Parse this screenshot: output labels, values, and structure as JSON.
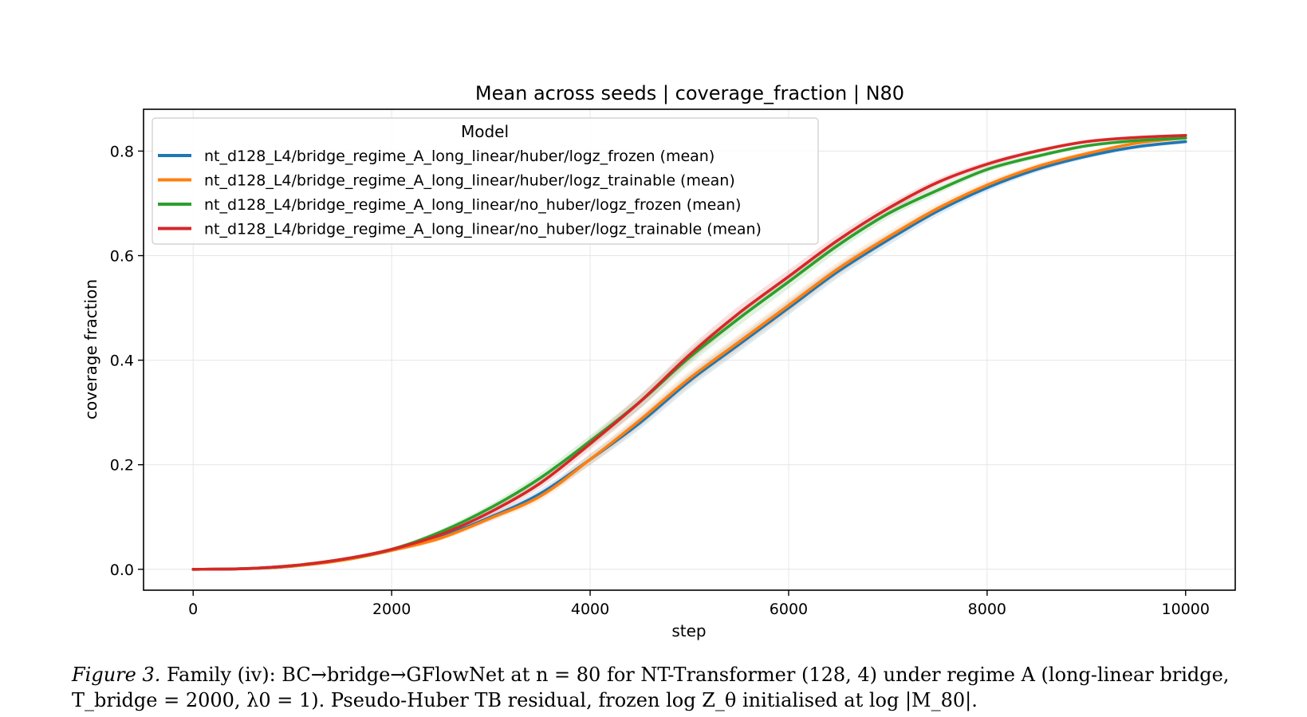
{
  "figure_label": "Figure 3.",
  "caption_text": "Family (iv): BC→bridge→GFlowNet at n = 80 for NT-Transformer (128, 4) under regime A (long-linear bridge, T_bridge = 2000, λ0 = 1). Pseudo-Huber TB residual, frozen log Z_θ initialised at log |M_80|.",
  "chart_data": {
    "type": "line",
    "title": "Mean across seeds | coverage_fraction | N80",
    "xlabel": "step",
    "ylabel": "coverage fraction",
    "xlim": [
      -500,
      10500
    ],
    "ylim": [
      -0.04,
      0.88
    ],
    "xticks": [
      0,
      2000,
      4000,
      6000,
      8000,
      10000
    ],
    "xtick_labels": [
      "0",
      "2000",
      "4000",
      "6000",
      "8000",
      "10000"
    ],
    "yticks": [
      0.0,
      0.2,
      0.4,
      0.6,
      0.8
    ],
    "ytick_labels": [
      "0.0",
      "0.2",
      "0.4",
      "0.6",
      "0.8"
    ],
    "grid": true,
    "legend_title": "Model",
    "legend_position": "upper-left",
    "series": [
      {
        "name": "nt_d128_L4/bridge_regime_A_long_linear/huber/logz_frozen (mean)",
        "color": "#1f77b4",
        "x": [
          0,
          500,
          1000,
          1500,
          2000,
          2500,
          3000,
          3500,
          4000,
          4500,
          5000,
          5500,
          6000,
          6500,
          7000,
          7500,
          8000,
          8500,
          9000,
          9500,
          10000
        ],
        "y": [
          0.0,
          0.001,
          0.006,
          0.018,
          0.037,
          0.063,
          0.1,
          0.145,
          0.21,
          0.28,
          0.36,
          0.43,
          0.5,
          0.57,
          0.63,
          0.685,
          0.73,
          0.765,
          0.79,
          0.808,
          0.818
        ]
      },
      {
        "name": "nt_d128_L4/bridge_regime_A_long_linear/huber/logz_trainable (mean)",
        "color": "#ff7f0e",
        "x": [
          0,
          500,
          1000,
          1500,
          2000,
          2500,
          3000,
          3500,
          4000,
          4500,
          5000,
          5500,
          6000,
          6500,
          7000,
          7500,
          8000,
          8500,
          9000,
          9500,
          10000
        ],
        "y": [
          0.0,
          0.001,
          0.006,
          0.017,
          0.036,
          0.06,
          0.098,
          0.14,
          0.21,
          0.285,
          0.365,
          0.435,
          0.505,
          0.575,
          0.635,
          0.69,
          0.735,
          0.77,
          0.795,
          0.815,
          0.825
        ]
      },
      {
        "name": "nt_d128_L4/bridge_regime_A_long_linear/no_huber/logz_frozen (mean)",
        "color": "#2ca02c",
        "x": [
          0,
          500,
          1000,
          1500,
          2000,
          2500,
          3000,
          3500,
          4000,
          4500,
          5000,
          5500,
          6000,
          6500,
          7000,
          7500,
          8000,
          8500,
          9000,
          9500,
          10000
        ],
        "y": [
          0.0,
          0.001,
          0.007,
          0.019,
          0.038,
          0.072,
          0.118,
          0.175,
          0.245,
          0.32,
          0.405,
          0.48,
          0.55,
          0.62,
          0.68,
          0.725,
          0.765,
          0.79,
          0.81,
          0.82,
          0.825
        ]
      },
      {
        "name": "nt_d128_L4/bridge_regime_A_long_linear/no_huber/logz_trainable (mean)",
        "color": "#d62728",
        "x": [
          0,
          500,
          1000,
          1500,
          2000,
          2500,
          3000,
          3500,
          4000,
          4500,
          5000,
          5500,
          6000,
          6500,
          7000,
          7500,
          8000,
          8500,
          9000,
          9500,
          10000
        ],
        "y": [
          0.0,
          0.001,
          0.007,
          0.019,
          0.038,
          0.067,
          0.11,
          0.165,
          0.24,
          0.32,
          0.41,
          0.49,
          0.56,
          0.63,
          0.69,
          0.74,
          0.775,
          0.8,
          0.818,
          0.826,
          0.83
        ]
      }
    ]
  }
}
